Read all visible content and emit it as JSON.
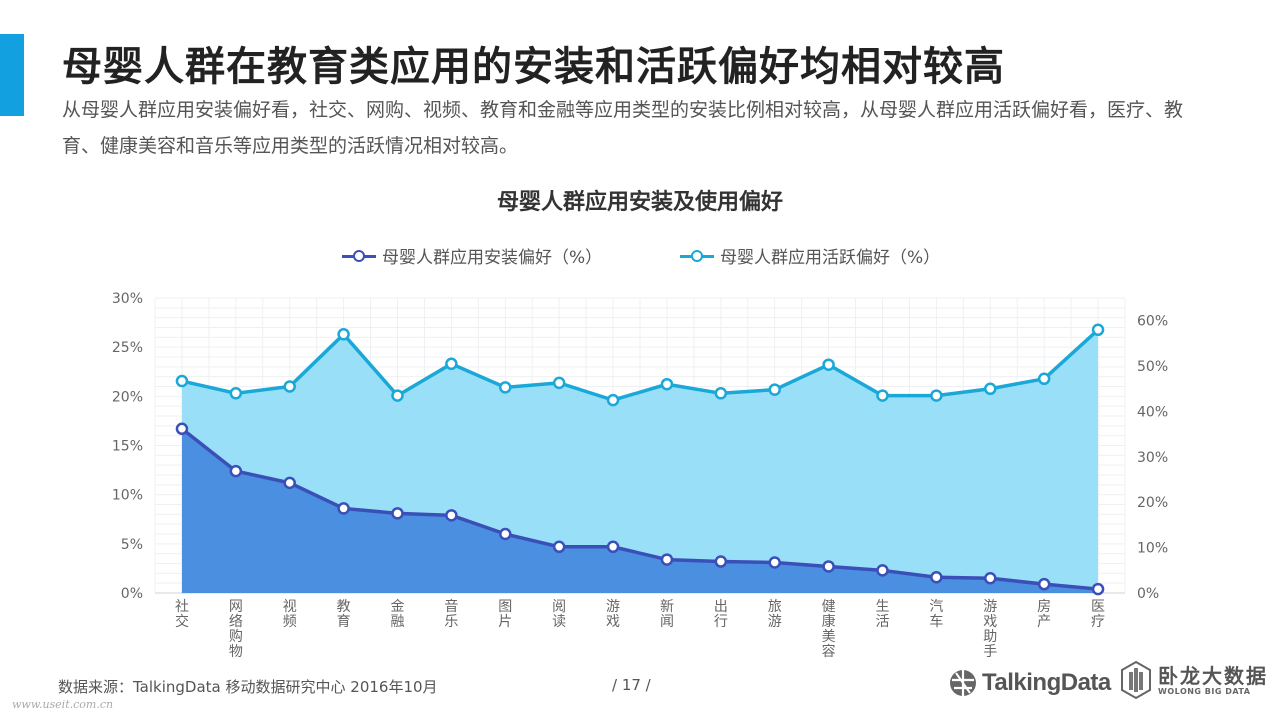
{
  "header": {
    "title": "母婴人群在教育类应用的安装和活跃偏好均相对较高",
    "subtitle": "从母婴人群应用安装偏好看，社交、网购、视频、教育和金融等应用类型的安装比例相对较高，从母婴人群应用活跃偏好看，医疗、教育、健康美容和音乐等应用类型的活跃情况相对较高。"
  },
  "chart_data": {
    "type": "area",
    "title": "母婴人群应用安装及使用偏好",
    "categories": [
      "社交",
      "网络购物",
      "视频",
      "教育",
      "金融",
      "音乐",
      "图片",
      "阅读",
      "游戏",
      "新闻",
      "出行",
      "旅游",
      "健康美容",
      "生活",
      "汽车",
      "游戏助手",
      "房产",
      "医疗"
    ],
    "series": [
      {
        "name": "母婴人群应用安装偏好（%）",
        "axis": "left",
        "color": "#3a4fb8",
        "fill": "#4a8fe0",
        "values": [
          16.7,
          12.4,
          11.2,
          8.6,
          8.1,
          7.9,
          6.0,
          4.7,
          4.7,
          3.4,
          3.2,
          3.1,
          2.7,
          2.3,
          1.6,
          1.5,
          0.9,
          0.4
        ]
      },
      {
        "name": "母婴人群应用活跃偏好（%）",
        "axis": "right",
        "color": "#1aa8d8",
        "fill": "#9adff8",
        "values": [
          46.7,
          44.0,
          45.5,
          57.0,
          43.5,
          50.5,
          45.3,
          46.3,
          42.5,
          46.0,
          44.0,
          44.8,
          50.3,
          43.5,
          43.5,
          45.0,
          47.2,
          58.0
        ]
      }
    ],
    "left_axis": {
      "min": 0,
      "max": 30,
      "step": 5,
      "ticks": [
        "0%",
        "5%",
        "10%",
        "15%",
        "20%",
        "25%",
        "30%"
      ]
    },
    "right_axis": {
      "min": 0,
      "max": 65,
      "step": 10,
      "ticks": [
        "0%",
        "10%",
        "20%",
        "30%",
        "40%",
        "50%",
        "60%"
      ]
    },
    "grid": true,
    "legend_position": "top"
  },
  "footer": {
    "source": "数据来源：TalkingData 移动数据研究中心  2016年10月",
    "page": "/  17  /",
    "watermark": "www.useit.com.cn",
    "logo_talkingdata": "TalkingData",
    "logo_wolong_cn": "卧龙大数据",
    "logo_wolong_en": "WOLONG BIG DATA"
  }
}
